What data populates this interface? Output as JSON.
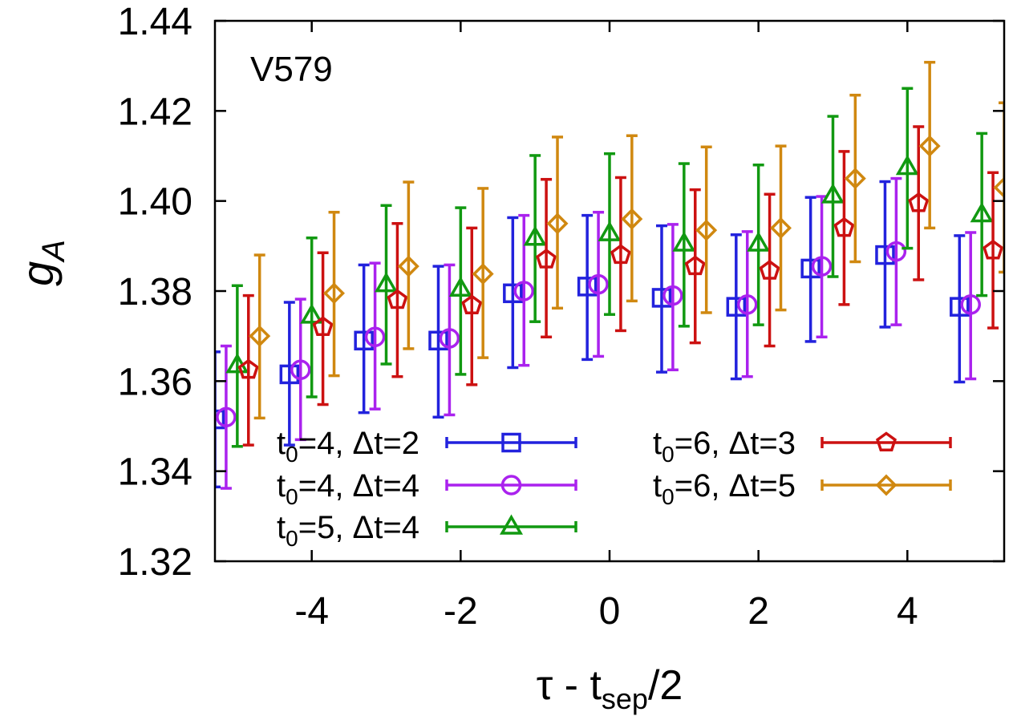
{
  "chart_data": {
    "type": "scatter",
    "title": "",
    "annotation": "V579",
    "xlabel": {
      "main": "τ - t",
      "sub": "sep",
      "tail": "/2"
    },
    "ylabel": {
      "main": "g",
      "sub": "A"
    },
    "xlim": [
      -5.3,
      5.3
    ],
    "ylim": [
      1.32,
      1.44
    ],
    "xticks": [
      -4,
      -2,
      0,
      2,
      4
    ],
    "yticks": [
      1.32,
      1.34,
      1.36,
      1.38,
      1.4,
      1.42,
      1.44
    ],
    "ytick_labels": [
      "1.32",
      "1.34",
      "1.36",
      "1.38",
      "1.40",
      "1.42",
      "1.44"
    ],
    "grid": false,
    "legend_position": "bottom-left",
    "series": [
      {
        "name": "t0=4, Δt=2",
        "label_base": "t",
        "label_sub": "0",
        "label_rest": "=4, Δt=2",
        "color": "#2222dd",
        "marker": "square",
        "x": [
          -5,
          -4,
          -3,
          -2,
          -1,
          0,
          1,
          2,
          3,
          4,
          5
        ],
        "y": [
          1.3515,
          1.3615,
          1.369,
          1.369,
          1.3795,
          1.381,
          1.3785,
          1.3765,
          1.385,
          1.388,
          1.3765
        ],
        "err_low": [
          1.3365,
          1.3458,
          1.353,
          1.352,
          1.363,
          1.3648,
          1.362,
          1.3605,
          1.3688,
          1.372,
          1.3598
        ],
        "err_high": [
          1.3665,
          1.3775,
          1.3858,
          1.3855,
          1.3963,
          1.3968,
          1.3945,
          1.3925,
          1.4008,
          1.4043,
          1.3923
        ]
      },
      {
        "name": "t0=4, Δt=4",
        "label_base": "t",
        "label_sub": "0",
        "label_rest": "=4, Δt=4",
        "color": "#aa22ee",
        "marker": "circle",
        "x": [
          -5,
          -4,
          -3,
          -2,
          -1,
          0,
          1,
          2,
          3,
          4,
          5
        ],
        "y": [
          1.352,
          1.3625,
          1.3698,
          1.3695,
          1.38,
          1.3815,
          1.379,
          1.377,
          1.3855,
          1.3888,
          1.377
        ],
        "err_low": [
          1.3362,
          1.347,
          1.3538,
          1.3525,
          1.3635,
          1.3655,
          1.3625,
          1.361,
          1.3698,
          1.3725,
          1.3605
        ],
        "err_high": [
          1.3678,
          1.3782,
          1.3862,
          1.3858,
          1.3968,
          1.3975,
          1.3948,
          1.3932,
          1.401,
          1.405,
          1.393
        ]
      },
      {
        "name": "t0=5, Δt=4",
        "label_base": "t",
        "label_sub": "0",
        "label_rest": "=5, Δt=4",
        "color": "#119911",
        "marker": "triangle",
        "x": [
          -5,
          -4,
          -3,
          -2,
          -1,
          0,
          1,
          2,
          3,
          4,
          5
        ],
        "y": [
          1.3635,
          1.3745,
          1.3815,
          1.3805,
          1.3918,
          1.3928,
          1.3905,
          1.3905,
          1.4012,
          1.4075,
          1.397
        ],
        "err_low": [
          1.3455,
          1.3565,
          1.3638,
          1.3615,
          1.3732,
          1.3748,
          1.3722,
          1.3725,
          1.3832,
          1.3895,
          1.379
        ],
        "err_high": [
          1.3812,
          1.3918,
          1.399,
          1.3985,
          1.4101,
          1.4105,
          1.4083,
          1.408,
          1.4188,
          1.425,
          1.415
        ]
      },
      {
        "name": "t0=6, Δt=3",
        "label_base": "t",
        "label_sub": "0",
        "label_rest": "=6, Δt=3",
        "color": "#cc1111",
        "marker": "pentagon",
        "x": [
          -5,
          -4,
          -3,
          -2,
          -1,
          0,
          1,
          2,
          3,
          4,
          5
        ],
        "y": [
          1.3625,
          1.372,
          1.378,
          1.3768,
          1.387,
          1.388,
          1.3855,
          1.3845,
          1.394,
          1.3995,
          1.389
        ],
        "err_low": [
          1.3458,
          1.3548,
          1.361,
          1.3592,
          1.3698,
          1.3712,
          1.3685,
          1.3678,
          1.377,
          1.3825,
          1.3718
        ],
        "err_high": [
          1.379,
          1.3885,
          1.395,
          1.394,
          1.4048,
          1.4052,
          1.4025,
          1.4015,
          1.411,
          1.4165,
          1.4063
        ]
      },
      {
        "name": "t0=6, Δt=5",
        "label_base": "t",
        "label_sub": "0",
        "label_rest": "=6, Δt=5",
        "color": "#d08810",
        "marker": "diamond",
        "x": [
          -5,
          -4,
          -3,
          -2,
          -1,
          0,
          1,
          2,
          3,
          4,
          5
        ],
        "y": [
          1.37,
          1.3795,
          1.3855,
          1.3838,
          1.395,
          1.396,
          1.3935,
          1.394,
          1.405,
          1.4122,
          1.403
        ],
        "err_low": [
          1.3518,
          1.3612,
          1.3672,
          1.3652,
          1.3762,
          1.3778,
          1.3752,
          1.3758,
          1.3865,
          1.394,
          1.3842
        ],
        "err_high": [
          1.388,
          1.3975,
          1.4042,
          1.4028,
          1.4142,
          1.4145,
          1.412,
          1.4122,
          1.4235,
          1.4308,
          1.4218
        ]
      }
    ]
  }
}
